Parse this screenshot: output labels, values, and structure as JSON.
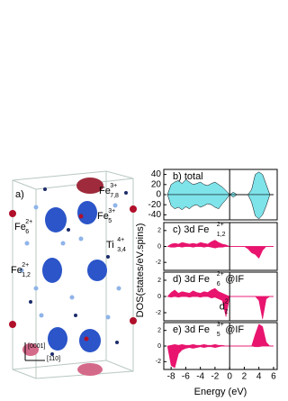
{
  "structure": {
    "panel_label": "a)",
    "labels": [
      {
        "main": "Fe",
        "sup": "3+",
        "sub": "7,8"
      },
      {
        "main": "Fe",
        "sup": "3+",
        "sub": "5"
      },
      {
        "main": "Fe",
        "sup": "2+",
        "sub": "6"
      },
      {
        "main": "Ti",
        "sup": "4+",
        "sub": "3,4"
      },
      {
        "main": "Fe",
        "sup": "2+",
        "sub": "1,2"
      }
    ],
    "directions": [
      "[0001]",
      "[110]"
    ]
  },
  "chart_data": [
    {
      "type": "area",
      "label": {
        "main": "b) total"
      },
      "ylabel": "DOS(states/eV.spins)",
      "x": [
        -8.5,
        -8,
        -7.5,
        -7,
        -6.5,
        -6,
        -5.5,
        -5,
        -4.5,
        -4,
        -3.5,
        -3,
        -2.5,
        -2,
        -1.5,
        -1,
        -0.5,
        0,
        0.5,
        1,
        1.5,
        2,
        2.5,
        3,
        3.5,
        4,
        4.5,
        5,
        5.5,
        6
      ],
      "xlim": [
        -9,
        6.5
      ],
      "ylim": [
        -50,
        50
      ],
      "yticks": [
        40,
        20,
        0,
        -20,
        -40
      ],
      "series": [
        {
          "color": "#7fe3ea",
          "values": [
            0,
            20,
            25,
            28,
            22,
            30,
            25,
            20,
            22,
            25,
            20,
            18,
            22,
            25,
            20,
            15,
            8,
            0,
            5,
            0,
            0,
            0,
            0,
            10,
            40,
            45,
            40,
            20,
            0,
            0
          ]
        },
        {
          "color": "#7fe3ea",
          "values": [
            0,
            -22,
            -28,
            -25,
            -30,
            -24,
            -28,
            -22,
            -20,
            -25,
            -22,
            -18,
            -20,
            -25,
            -28,
            -18,
            -10,
            0,
            -5,
            0,
            0,
            0,
            0,
            -15,
            -42,
            -48,
            -40,
            -22,
            0,
            0
          ]
        }
      ]
    },
    {
      "type": "area",
      "label": {
        "main": "c) 3d Fe",
        "sup": "2+",
        "sub": "1,2"
      },
      "x": [
        -8.5,
        -8,
        -7.5,
        -7,
        -6.5,
        -6,
        -5.5,
        -5,
        -4.5,
        -4,
        -3.5,
        -3,
        -2.5,
        -2,
        -1.5,
        -1,
        -0.5,
        0,
        0.5,
        1,
        1.5,
        2,
        2.5,
        3,
        3.5,
        4,
        4.5,
        5,
        5.5,
        6
      ],
      "xlim": [
        -9,
        6.5
      ],
      "ylim": [
        -3,
        3
      ],
      "yticks": [
        2,
        0,
        -2
      ],
      "series": [
        {
          "color": "#e8146e",
          "values": [
            0,
            0.3,
            0.4,
            0.3,
            0.5,
            0.4,
            0.3,
            0.4,
            0.3,
            0.5,
            0.4,
            0.3,
            0.6,
            0.8,
            0.5,
            0.3,
            0.2,
            0,
            0,
            0,
            0,
            0,
            0,
            0,
            0,
            0,
            0,
            0,
            0,
            0
          ]
        },
        {
          "color": "#e8146e",
          "values": [
            0,
            -0.1,
            -0.1,
            0,
            -0.1,
            0,
            0,
            -0.1,
            0,
            0,
            -0.1,
            0,
            -0.1,
            -0.2,
            -0.1,
            -0.1,
            0,
            0,
            0,
            0,
            0,
            0,
            -0.3,
            -0.8,
            -1,
            -1.5,
            -0.5,
            0,
            0,
            0
          ]
        }
      ]
    },
    {
      "type": "area",
      "label": {
        "main": "d) 3d Fe",
        "sub": "6",
        "sup": "2+",
        "suffix": "@IF"
      },
      "annotation": {
        "main": "d",
        "sub": "z",
        "sup": "2"
      },
      "x": [
        -8.5,
        -8,
        -7.5,
        -7,
        -6.5,
        -6,
        -5.5,
        -5,
        -4.5,
        -4,
        -3.5,
        -3,
        -2.5,
        -2,
        -1.5,
        -1,
        -0.5,
        0,
        0.5,
        1,
        1.5,
        2,
        2.5,
        3,
        3.5,
        4,
        4.5,
        5,
        5.5,
        6
      ],
      "xlim": [
        -9,
        6.5
      ],
      "ylim": [
        -3,
        3
      ],
      "yticks": [
        2,
        0,
        -2
      ],
      "series": [
        {
          "color": "#e8146e",
          "values": [
            0,
            0.5,
            0.8,
            0.4,
            0.6,
            0.5,
            0.4,
            0.7,
            0.5,
            0.4,
            0.6,
            0.5,
            0.8,
            1,
            0.6,
            0.4,
            0.2,
            0,
            0,
            0,
            0,
            0,
            0,
            0,
            0,
            0,
            0,
            0,
            0,
            0
          ]
        },
        {
          "color": "#e8146e",
          "values": [
            0,
            -0.1,
            0,
            -0.1,
            0,
            0,
            -0.1,
            0,
            0,
            -0.1,
            0,
            0,
            -0.2,
            -0.1,
            -0.3,
            -0.5,
            -2.5,
            0,
            0,
            0,
            0,
            0,
            0,
            0,
            0,
            -0.5,
            -2.8,
            -0.3,
            0,
            0
          ]
        }
      ]
    },
    {
      "type": "area",
      "label": {
        "main": "e) 3d Fe",
        "sub": "5",
        "sup": "3+",
        "suffix": "@IF"
      },
      "x": [
        -8.5,
        -8,
        -7.5,
        -7,
        -6.5,
        -6,
        -5.5,
        -5,
        -4.5,
        -4,
        -3.5,
        -3,
        -2.5,
        -2,
        -1.5,
        -1,
        -0.5,
        0,
        0.5,
        1,
        1.5,
        2,
        2.5,
        3,
        3.5,
        4,
        4.5,
        5,
        5.5,
        6
      ],
      "xlim": [
        -9,
        6.5
      ],
      "ylim": [
        -3,
        3
      ],
      "yticks": [
        2,
        0,
        -2
      ],
      "xticks": [
        -8,
        -6,
        -4,
        -2,
        0,
        2,
        4,
        6
      ],
      "xlabel": "Energy (eV)",
      "series": [
        {
          "color": "#e8146e",
          "values": [
            0,
            0.1,
            0.2,
            0.1,
            0.2,
            0.1,
            0.1,
            0.2,
            0.1,
            0.1,
            0.2,
            0.1,
            0.1,
            0.2,
            0.1,
            0.1,
            0,
            0,
            0,
            0,
            0,
            0,
            0,
            0,
            1.5,
            2.8,
            2.5,
            0.5,
            0,
            0
          ]
        },
        {
          "color": "#e8146e",
          "values": [
            0,
            -2.5,
            -2.8,
            -1,
            -0.5,
            -0.3,
            -0.2,
            -0.3,
            -0.2,
            -0.1,
            -0.2,
            -0.1,
            -0.1,
            -0.2,
            -0.1,
            0,
            0,
            0,
            0,
            0,
            0,
            0,
            0,
            0,
            -0.1,
            -0.1,
            0,
            0,
            0,
            0
          ]
        }
      ]
    }
  ]
}
